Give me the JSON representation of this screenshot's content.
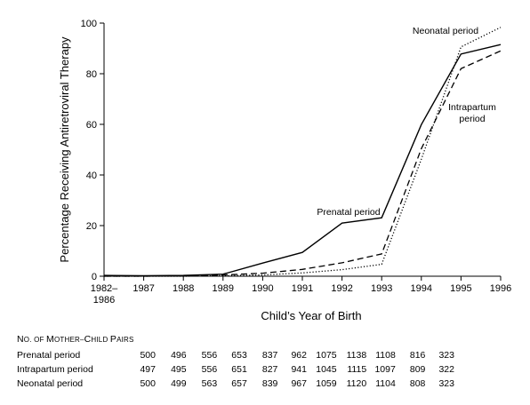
{
  "chart_data": {
    "type": "line",
    "ylabel": "Percentage Receiving Antiretroviral Therapy",
    "xlabel": "Child’s Year of Birth",
    "ylim": [
      0,
      100
    ],
    "yticks": [
      "0",
      "20",
      "40",
      "60",
      "80",
      "100"
    ],
    "categories": [
      [
        "1982–",
        "1986"
      ],
      [
        "1987"
      ],
      [
        "1988"
      ],
      [
        "1989"
      ],
      [
        "1990"
      ],
      [
        "1991"
      ],
      [
        "1992"
      ],
      [
        "1993"
      ],
      [
        "1994"
      ],
      [
        "1995"
      ],
      [
        "1996"
      ]
    ],
    "grid": false,
    "series": [
      {
        "name": "Prenatal period",
        "line_style": "solid",
        "values": [
          0.3,
          0.2,
          0.3,
          0.8,
          5.2,
          9.4,
          21.0,
          23.1,
          59.9,
          87.8,
          91.5
        ]
      },
      {
        "name": "Intrapartum period",
        "line_style": "dashed",
        "values": [
          0.0,
          0.0,
          0.2,
          0.5,
          1.2,
          2.7,
          5.3,
          8.8,
          50.4,
          82.0,
          89.0
        ]
      },
      {
        "name": "Neonatal period",
        "line_style": "dotted",
        "values": [
          0.0,
          0.0,
          0.0,
          0.2,
          0.5,
          1.3,
          2.6,
          4.7,
          46.2,
          90.6,
          98.3
        ]
      }
    ],
    "annotations": [
      {
        "text": "Neonatal period",
        "series": "Neonatal period"
      },
      {
        "text": "Intrapartum",
        "series": "Intrapartum period"
      },
      {
        "text": "period",
        "series": "Intrapartum period"
      },
      {
        "text": "Prenatal period",
        "series": "Prenatal period"
      }
    ]
  },
  "pairs_table": {
    "heading_parts": [
      {
        "text": "N",
        "size": "large"
      },
      {
        "text": "O. OF ",
        "size": "small"
      },
      {
        "text": "M",
        "size": "large"
      },
      {
        "text": "OTHER",
        "size": "small"
      },
      {
        "text": "–",
        "size": "small"
      },
      {
        "text": "C",
        "size": "large"
      },
      {
        "text": "HILD ",
        "size": "small"
      },
      {
        "text": "P",
        "size": "large"
      },
      {
        "text": "AIRS",
        "size": "small"
      }
    ],
    "rows": [
      {
        "label": "Prenatal period",
        "values": [
          "500",
          "496",
          "556",
          "653",
          "837",
          "962",
          "1075",
          "1138",
          "1108",
          "816",
          "323"
        ]
      },
      {
        "label": "Intrapartum period",
        "values": [
          "497",
          "495",
          "556",
          "651",
          "827",
          "941",
          "1045",
          "1115",
          "1097",
          "809",
          "322"
        ]
      },
      {
        "label": "Neonatal period",
        "values": [
          "500",
          "499",
          "563",
          "657",
          "839",
          "967",
          "1059",
          "1120",
          "1104",
          "808",
          "323"
        ]
      }
    ]
  }
}
